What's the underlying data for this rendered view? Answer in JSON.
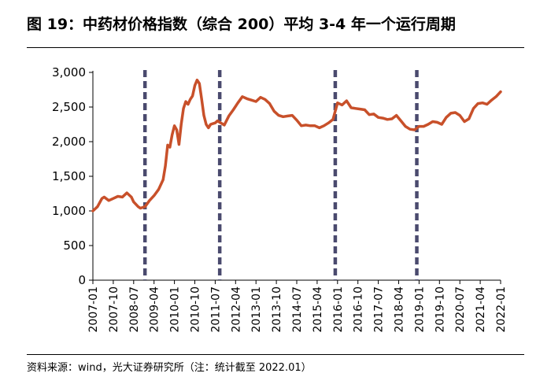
{
  "title": "图 19：中药材价格指数（综合 200）平均 3-4 年一个运行周期",
  "source": "资料来源：wind，光大证券研究所（注：统计截至 2022.01）",
  "chart_data": {
    "type": "line",
    "title": "",
    "xlabel": "",
    "ylabel": "",
    "ylim": [
      0,
      3000
    ],
    "xlim": [
      "2007-01",
      "2022-01"
    ],
    "yticks": [
      0,
      500,
      1000,
      1500,
      2000,
      2500,
      3000
    ],
    "ytick_labels": [
      "0",
      "500",
      "1,000",
      "1,500",
      "2,000",
      "2,500",
      "3,000"
    ],
    "xtick_labels": [
      "2007-01",
      "2007-10",
      "2008-07",
      "2009-04",
      "2010-01",
      "2010-10",
      "2011-07",
      "2012-04",
      "2013-01",
      "2013-10",
      "2014-07",
      "2015-04",
      "2016-01",
      "2016-10",
      "2017-07",
      "2018-04",
      "2019-01",
      "2019-10",
      "2020-07",
      "2021-04",
      "2022-01"
    ],
    "grid": false,
    "legend": "none",
    "line_color": "#C8502A",
    "marker_color": "#4A4A6E",
    "markers": [
      "2008-12",
      "2011-09",
      "2015-12",
      "2018-12"
    ],
    "series": [
      {
        "x": [
          "2007-01",
          "2007-03",
          "2007-05",
          "2007-06",
          "2007-08",
          "2007-10",
          "2007-12",
          "2008-02",
          "2008-04",
          "2008-06",
          "2008-07",
          "2008-09",
          "2008-10",
          "2008-12",
          "2009-02",
          "2009-04",
          "2009-06",
          "2009-08",
          "2009-09",
          "2009-10",
          "2009-11",
          "2009-12",
          "2010-01",
          "2010-02",
          "2010-03",
          "2010-04",
          "2010-05",
          "2010-06",
          "2010-07",
          "2010-08",
          "2010-09",
          "2010-10",
          "2010-11",
          "2010-12",
          "2011-01",
          "2011-02",
          "2011-03",
          "2011-04",
          "2011-05",
          "2011-06",
          "2011-07",
          "2011-08",
          "2011-09",
          "2011-11",
          "2012-01",
          "2012-03",
          "2012-05",
          "2012-07",
          "2012-09",
          "2012-11",
          "2013-01",
          "2013-03",
          "2013-05",
          "2013-07",
          "2013-09",
          "2013-11",
          "2014-01",
          "2014-03",
          "2014-05",
          "2014-07",
          "2014-09",
          "2014-11",
          "2015-01",
          "2015-03",
          "2015-05",
          "2015-07",
          "2015-09",
          "2015-11",
          "2016-01",
          "2016-03",
          "2016-05",
          "2016-07",
          "2016-09",
          "2016-11",
          "2017-01",
          "2017-03",
          "2017-05",
          "2017-07",
          "2017-09",
          "2017-11",
          "2018-01",
          "2018-03",
          "2018-05",
          "2018-07",
          "2018-09",
          "2018-11",
          "2019-01",
          "2019-03",
          "2019-05",
          "2019-07",
          "2019-09",
          "2019-11",
          "2020-01",
          "2020-03",
          "2020-05",
          "2020-07",
          "2020-09",
          "2020-11",
          "2021-01",
          "2021-03",
          "2021-05",
          "2021-07",
          "2021-09",
          "2021-11",
          "2022-01"
        ],
        "values": [
          1000,
          1060,
          1180,
          1200,
          1150,
          1180,
          1210,
          1200,
          1260,
          1200,
          1130,
          1060,
          1040,
          1060,
          1150,
          1220,
          1310,
          1450,
          1650,
          1950,
          1920,
          2100,
          2230,
          2170,
          1960,
          2250,
          2480,
          2580,
          2540,
          2610,
          2660,
          2810,
          2890,
          2840,
          2620,
          2380,
          2250,
          2200,
          2250,
          2260,
          2270,
          2300,
          2280,
          2240,
          2370,
          2460,
          2560,
          2650,
          2620,
          2600,
          2580,
          2640,
          2610,
          2550,
          2440,
          2380,
          2360,
          2370,
          2380,
          2310,
          2230,
          2240,
          2230,
          2230,
          2200,
          2230,
          2270,
          2320,
          2560,
          2530,
          2590,
          2490,
          2480,
          2470,
          2460,
          2390,
          2400,
          2350,
          2340,
          2320,
          2330,
          2380,
          2300,
          2220,
          2180,
          2170,
          2220,
          2220,
          2250,
          2290,
          2280,
          2250,
          2350,
          2410,
          2420,
          2380,
          2290,
          2330,
          2480,
          2550,
          2560,
          2540,
          2600,
          2650,
          2720
        ]
      }
    ]
  }
}
